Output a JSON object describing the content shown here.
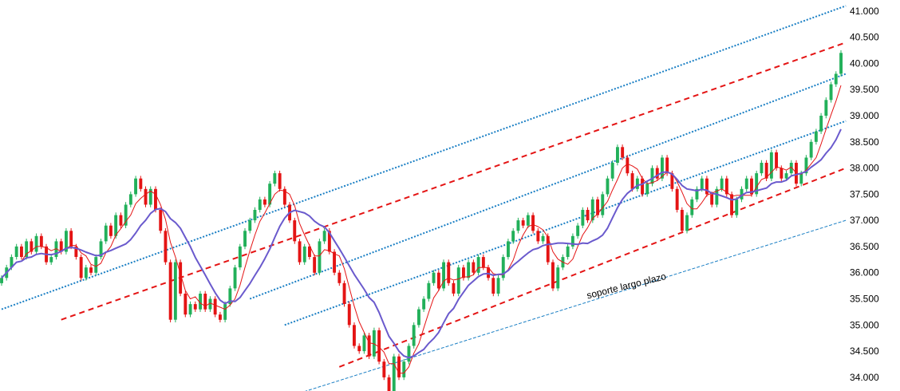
{
  "chart_data": {
    "type": "line",
    "title": "",
    "xlabel": "",
    "ylabel": "",
    "ylim": [
      33.8,
      41.15
    ],
    "y_ticks": [
      "34.000",
      "34.500",
      "35.000",
      "35.500",
      "36.000",
      "36.500",
      "37.000",
      "37.500",
      "38.000",
      "38.500",
      "39.000",
      "39.500",
      "40.000",
      "40.500",
      "41.000"
    ],
    "y_axis_position": "right",
    "grid": false,
    "legend": "none",
    "candles": {
      "up_color": "#22b05a",
      "down_color": "#e41414",
      "closes": [
        35.9,
        36.1,
        36.3,
        36.5,
        36.3,
        36.6,
        36.4,
        36.7,
        36.5,
        36.2,
        36.3,
        36.6,
        36.4,
        36.8,
        36.5,
        36.3,
        35.9,
        36.1,
        36.0,
        36.3,
        36.6,
        36.9,
        36.7,
        37.1,
        36.9,
        37.3,
        37.5,
        37.8,
        37.6,
        37.3,
        37.6,
        37.2,
        36.8,
        36.2,
        35.1,
        36.2,
        35.6,
        35.2,
        35.4,
        35.3,
        35.6,
        35.3,
        35.5,
        35.2,
        35.1,
        35.4,
        35.7,
        36.1,
        36.5,
        36.8,
        37.0,
        37.2,
        37.4,
        37.3,
        37.7,
        37.9,
        37.6,
        37.3,
        37.0,
        36.6,
        36.2,
        36.5,
        36.3,
        36.0,
        36.6,
        36.8,
        36.4,
        36.0,
        35.8,
        35.4,
        35.0,
        34.6,
        34.5,
        34.8,
        34.4,
        34.9,
        34.3,
        34.0,
        33.7,
        34.4,
        34.0,
        34.3,
        34.6,
        35.0,
        35.3,
        35.5,
        35.8,
        36.0,
        35.7,
        36.2,
        35.8,
        35.6,
        36.1,
        35.9,
        36.2,
        36.0,
        36.3,
        36.1,
        35.9,
        35.6,
        35.9,
        36.3,
        36.6,
        36.8,
        37.0,
        36.9,
        37.1,
        36.8,
        36.6,
        36.7,
        36.2,
        35.7,
        36.1,
        36.3,
        36.5,
        36.7,
        36.9,
        37.2,
        37.0,
        37.4,
        37.1,
        37.5,
        37.8,
        38.1,
        38.4,
        38.2,
        37.9,
        37.6,
        37.8,
        37.5,
        37.7,
        38.0,
        37.8,
        38.2,
        37.9,
        37.6,
        37.2,
        36.8,
        37.1,
        37.4,
        37.6,
        37.8,
        37.5,
        37.3,
        37.6,
        37.8,
        37.5,
        37.1,
        37.4,
        37.6,
        37.8,
        37.5,
        37.9,
        38.1,
        37.8,
        38.3,
        38.0,
        37.8,
        37.9,
        38.1,
        37.7,
        37.9,
        38.2,
        38.5,
        38.7,
        39.0,
        39.3,
        39.6,
        39.8,
        40.2
      ]
    },
    "moving_averages": [
      {
        "color": "#e41414",
        "period": 5
      },
      {
        "color": "#6a5acd",
        "period": 12
      }
    ],
    "trend_lines": [
      {
        "style": "red-dashed",
        "color": "#e41414",
        "points": [
          [
            12,
            35.1
          ],
          [
            170,
            40.4
          ]
        ]
      },
      {
        "style": "red-dashed",
        "color": "#e41414",
        "points": [
          [
            68,
            34.2
          ],
          [
            170,
            38.0
          ]
        ]
      },
      {
        "style": "blue-dotted",
        "color": "#1a7fc4",
        "points": [
          [
            0,
            35.3
          ],
          [
            170,
            41.1
          ]
        ]
      },
      {
        "style": "blue-dotted",
        "color": "#1a7fc4",
        "points": [
          [
            50,
            35.5
          ],
          [
            170,
            39.8
          ]
        ]
      },
      {
        "style": "blue-dotted",
        "color": "#1a7fc4",
        "points": [
          [
            57,
            35.0
          ],
          [
            170,
            38.9
          ]
        ]
      },
      {
        "style": "blue-dashed-thin",
        "color": "#1a7fc4",
        "points": [
          [
            60,
            33.7
          ],
          [
            170,
            37.0
          ]
        ]
      }
    ],
    "annotations": [
      {
        "text": "soporte largo plazo",
        "x": 118,
        "y": 35.5,
        "angle_deg": -14
      }
    ]
  }
}
